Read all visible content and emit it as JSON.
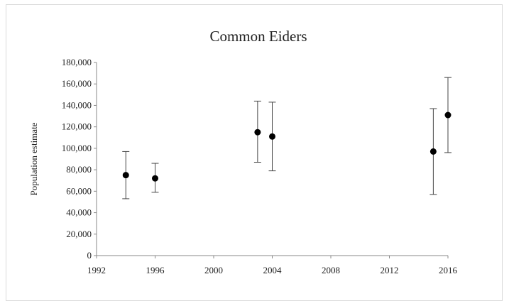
{
  "chart_data": {
    "type": "scatter",
    "title": "Common Eiders",
    "xlabel": "",
    "ylabel": "Population estimate",
    "xlim": [
      1992,
      2016
    ],
    "ylim": [
      0,
      180000
    ],
    "x_ticks": [
      "1992",
      "1996",
      "2000",
      "2004",
      "2008",
      "2012",
      "2016"
    ],
    "y_ticks": [
      "0",
      "20,000",
      "40,000",
      "60,000",
      "80,000",
      "100,000",
      "120,000",
      "140,000",
      "160,000",
      "180,000"
    ],
    "grid": false,
    "legend": "none",
    "marker_color": "#000000",
    "error_bar_color": "#444444",
    "points": [
      {
        "x": 1994,
        "y": 75000,
        "low": 53000,
        "high": 97000
      },
      {
        "x": 1996,
        "y": 72000,
        "low": 59000,
        "high": 86000
      },
      {
        "x": 2003,
        "y": 115000,
        "low": 87000,
        "high": 144000
      },
      {
        "x": 2004,
        "y": 111000,
        "low": 79000,
        "high": 143000
      },
      {
        "x": 2015,
        "y": 97000,
        "low": 57000,
        "high": 137000
      },
      {
        "x": 2016,
        "y": 131000,
        "low": 96000,
        "high": 166000
      }
    ]
  }
}
